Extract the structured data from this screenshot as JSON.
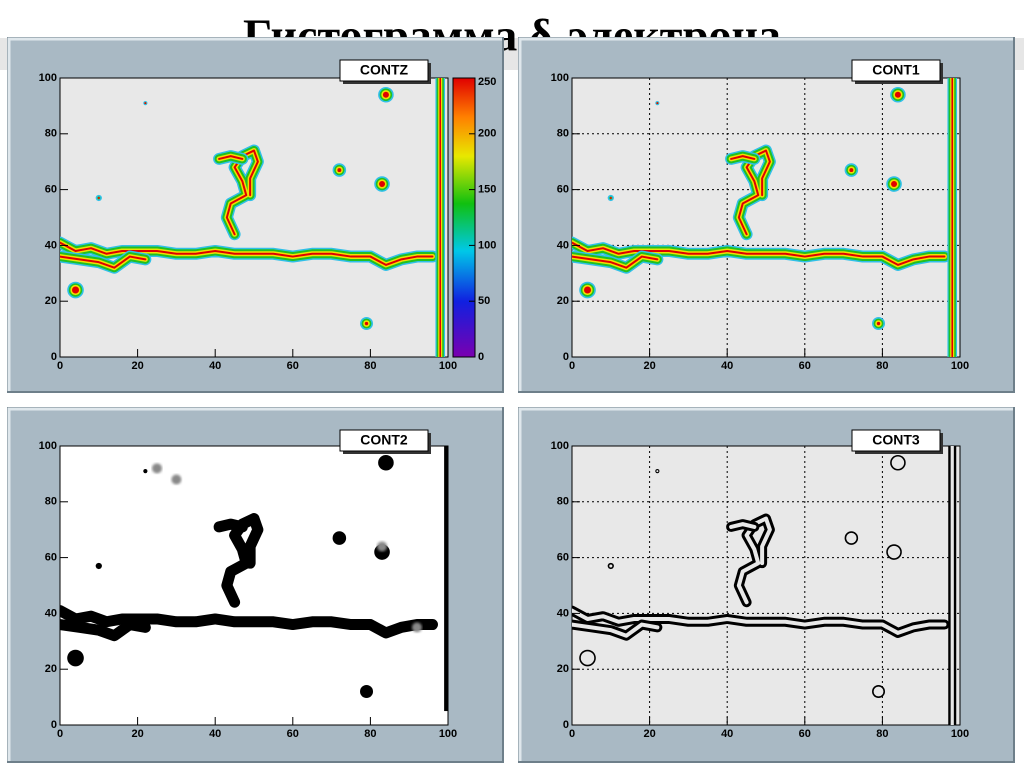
{
  "title": "Гистограмма δ-электрона",
  "panels": [
    {
      "label": "CONTZ",
      "xticks": [
        0,
        20,
        40,
        60,
        80,
        100
      ],
      "yticks": [
        0,
        20,
        40,
        60,
        80,
        100
      ],
      "colorbar_ticks": [
        0,
        50,
        100,
        150,
        200,
        250
      ]
    },
    {
      "label": "CONT1",
      "xticks": [
        0,
        20,
        40,
        60,
        80,
        100
      ],
      "yticks": [
        0,
        20,
        40,
        60,
        80,
        100
      ]
    },
    {
      "label": "CONT2",
      "xticks": [
        0,
        20,
        40,
        60,
        80,
        100
      ],
      "yticks": [
        0,
        20,
        40,
        60,
        80,
        100
      ]
    },
    {
      "label": "CONT3",
      "xticks": [
        0,
        20,
        40,
        60,
        80,
        100
      ],
      "yticks": [
        0,
        20,
        40,
        60,
        80,
        100
      ]
    }
  ]
}
